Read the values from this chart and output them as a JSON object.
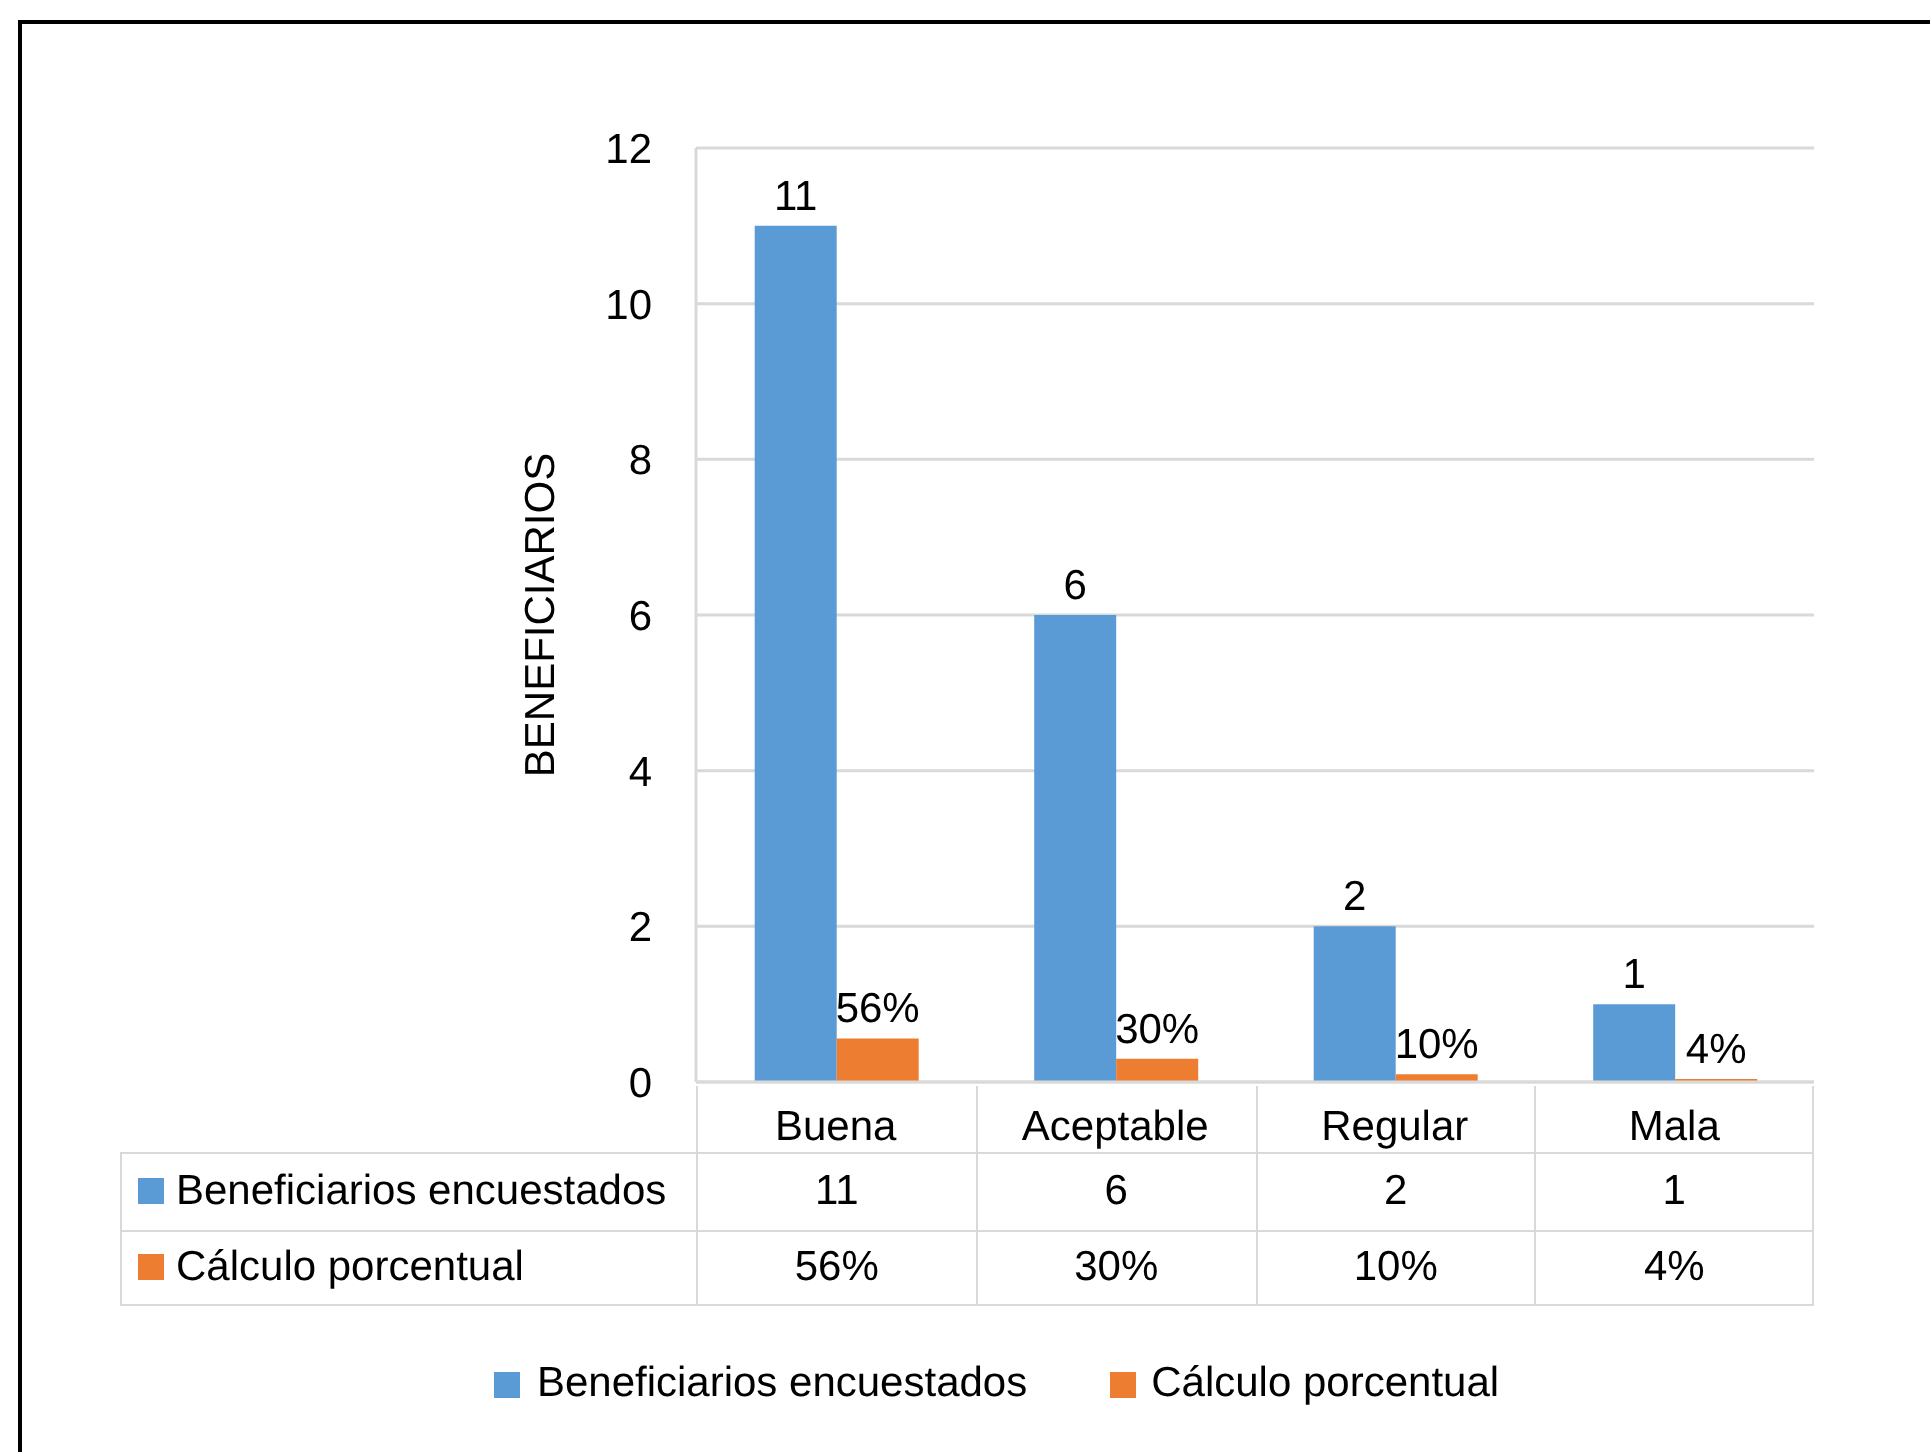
{
  "chart_data": {
    "type": "bar",
    "ylabel": "BENEFICIARIOS",
    "categories": [
      "Buena",
      "Aceptable",
      "Regular",
      "Mala"
    ],
    "series": [
      {
        "name": "Beneficiarios encuestados",
        "color": "#5b9bd5",
        "values": [
          11,
          6,
          2,
          1
        ],
        "value_labels": [
          "11",
          "6",
          "2",
          "1"
        ]
      },
      {
        "name": "Cálculo porcentual",
        "color": "#ed7d31",
        "values": [
          0.56,
          0.3,
          0.1,
          0.04
        ],
        "value_labels": [
          "56%",
          "30%",
          "10%",
          "4%"
        ]
      }
    ],
    "ylim": [
      0,
      12
    ],
    "yticks": [
      0,
      2,
      4,
      6,
      8,
      10,
      12
    ],
    "grid": "y",
    "legend": "bottom"
  }
}
